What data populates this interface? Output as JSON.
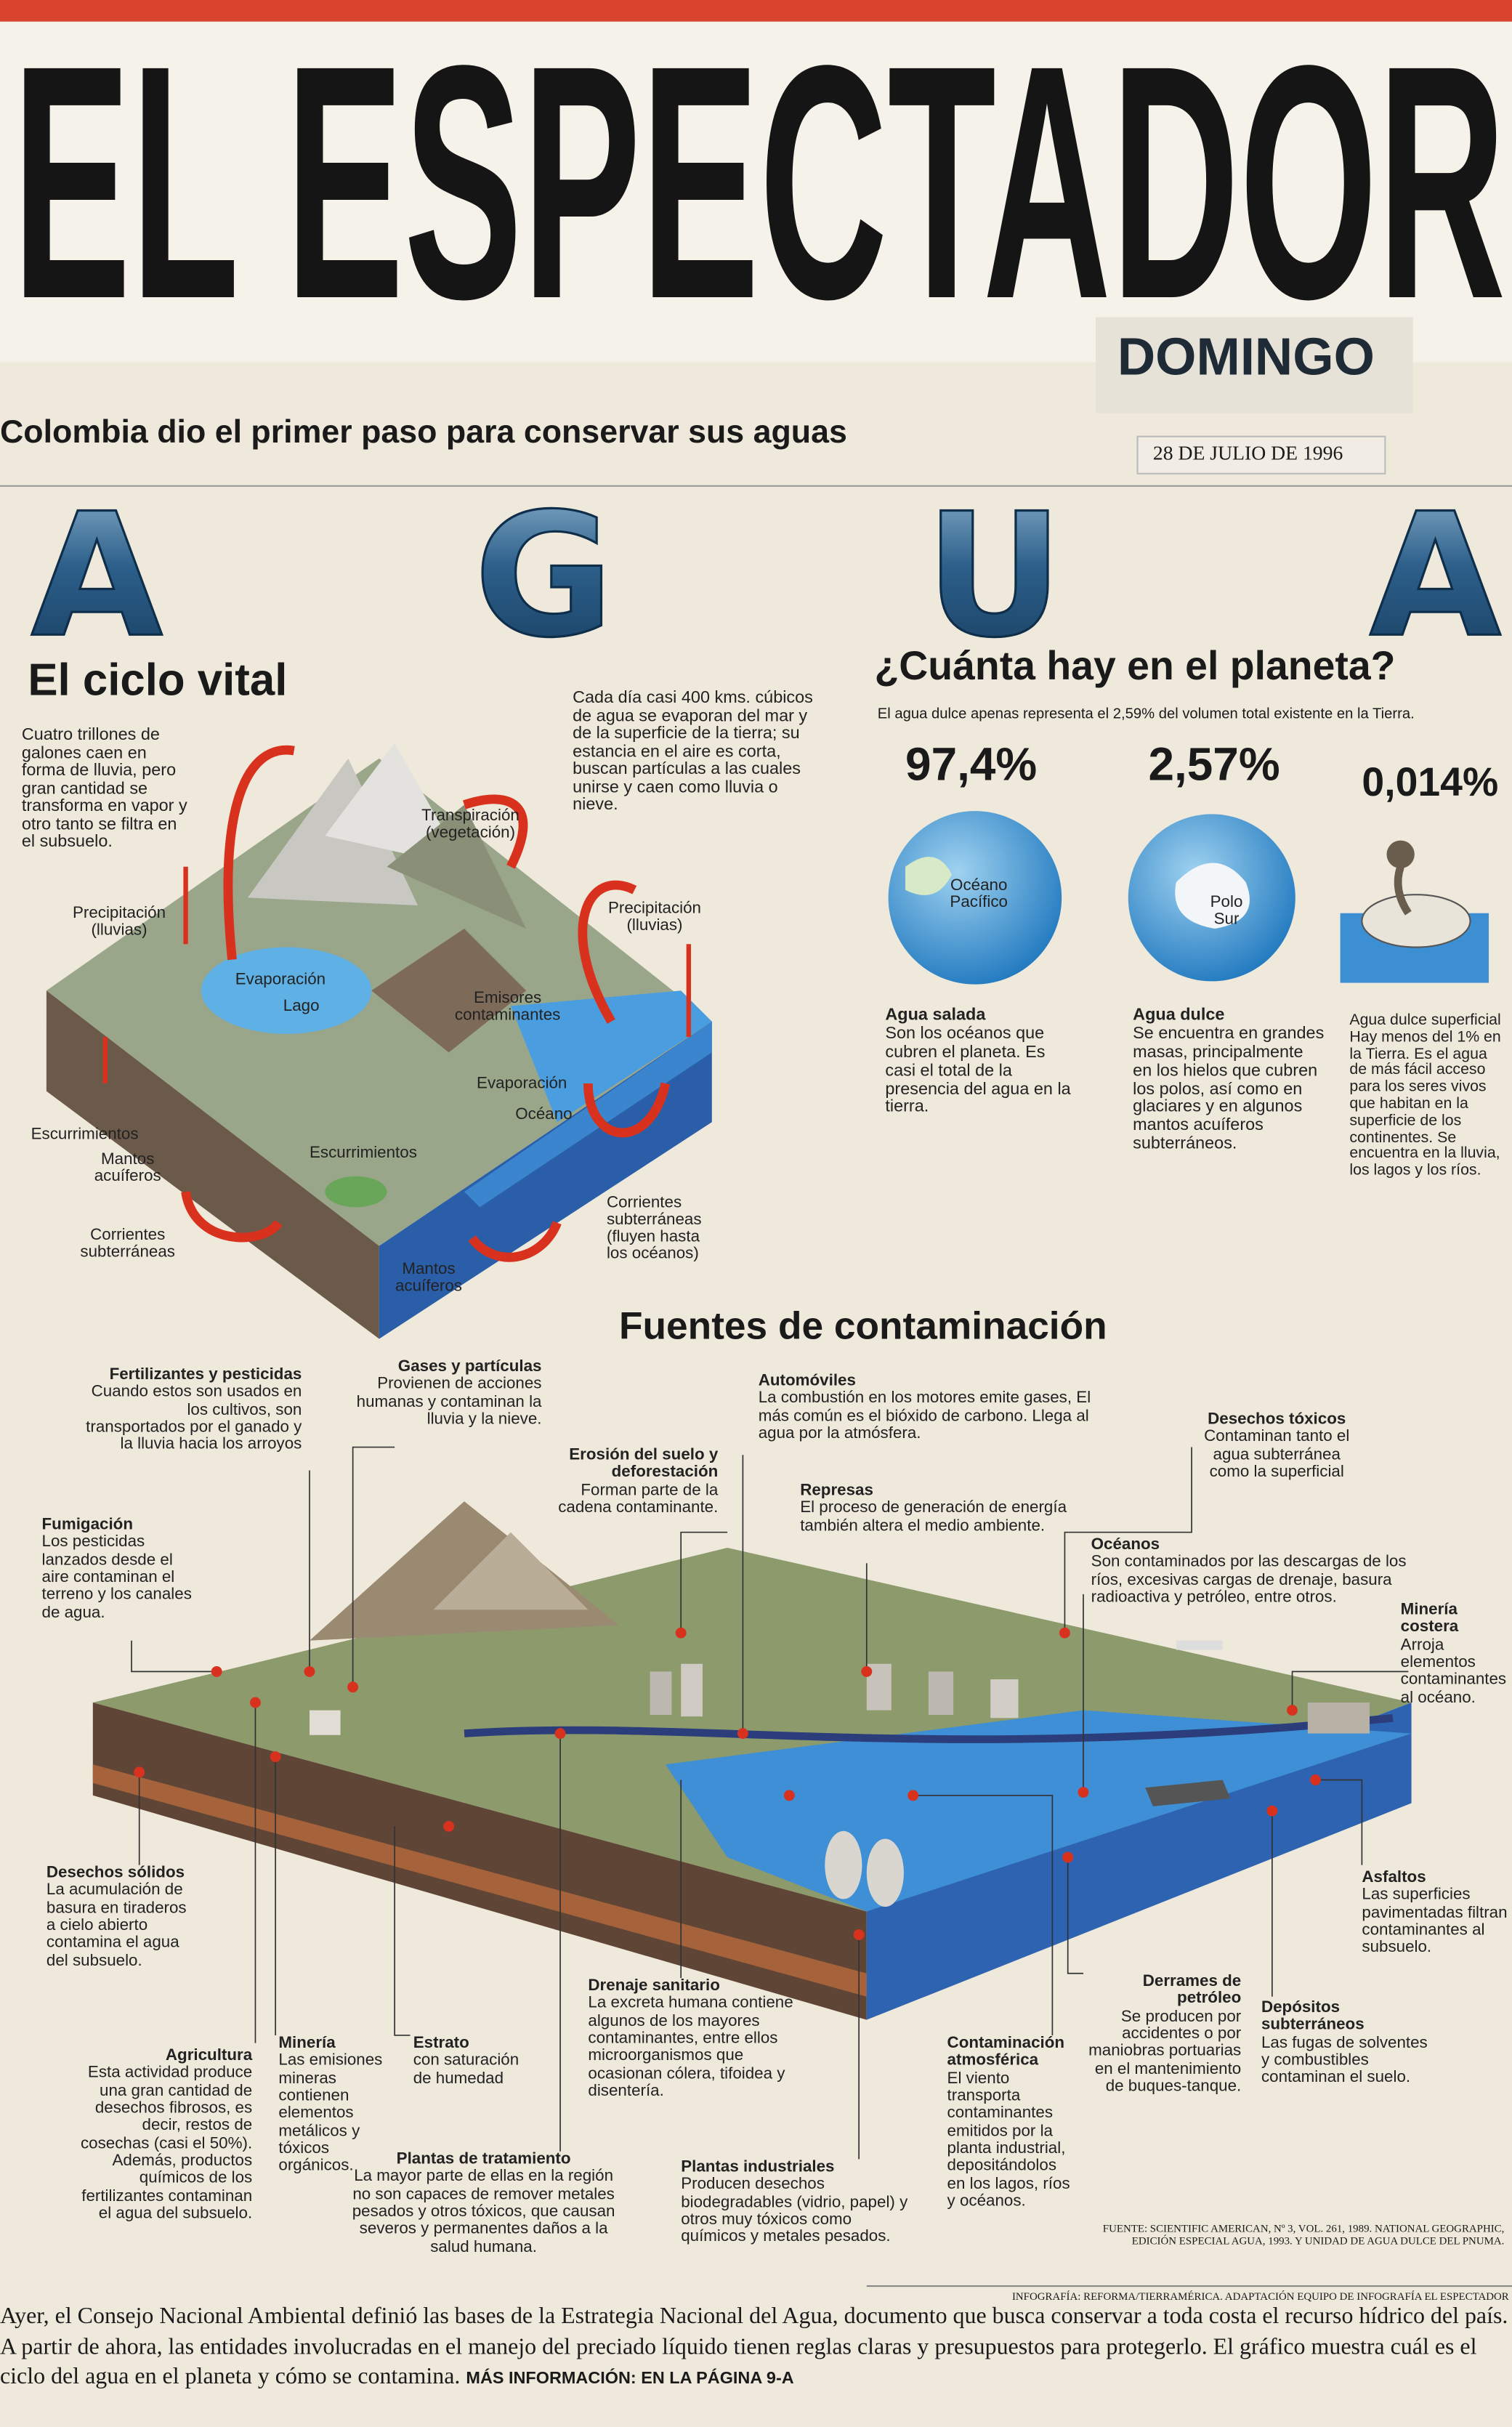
{
  "header": {
    "masthead": "EL ESPECTADOR",
    "edition": "DOMINGO",
    "headline": "Colombia dio el primer paso para conservar sus aguas",
    "date": "28 DE JULIO DE 1996"
  },
  "banner": {
    "title": "AGUA"
  },
  "cycle": {
    "title": "El ciclo vital",
    "intro": "Cuatro trillones de galones caen en forma de lluvia, pero gran cantidad se transforma en vapor y otro tanto se filtra en el subsuelo.",
    "note": "Cada día casi 400 kms. cúbicos de agua se evaporan del mar y de la superficie de la tierra; su estancia en el aire es corta, buscan partículas a las cuales unirse y caen como lluvia o nieve.",
    "labels": [
      "Transpiración (vegetación)",
      "Precipitación (lluvias)",
      "Evaporación",
      "Lago",
      "Emisores contaminantes",
      "Precipitación (lluvias)",
      "Evaporación",
      "Océano",
      "Escurrimientos",
      "Mantos acuíferos",
      "Escurrimientos",
      "Corrientes subterráneas",
      "Mantos acuíferos",
      "Corrientes subterráneas (fluyen hasta los océanos)"
    ]
  },
  "planet": {
    "title": "¿Cuánta hay en el planeta?",
    "subtitle": "El agua dulce apenas representa el 2,59% del volumen total existente en la Tierra.",
    "items": [
      {
        "percent": "97,4%",
        "globe_label": "Océano Pacífico",
        "heading": "Agua salada",
        "text": "Son los océanos que cubren el planeta. Es casi el total de la presencia del agua en la tierra."
      },
      {
        "percent": "2,57%",
        "globe_label": "Polo Sur",
        "heading": "Agua dulce",
        "text": "Se encuentra en grandes masas, principalmente en los hielos que cubren los polos, así como en glaciares y en algunos mantos acuíferos subterráneos."
      },
      {
        "percent": "0,014%",
        "heading": "Agua dulce superficial",
        "text": "Hay menos del 1% en la Tierra. Es el agua de más fácil acceso para los seres vivos que habitan en la superficie de los continentes. Se encuentra en la lluvia, los lagos y los ríos."
      }
    ]
  },
  "contamination": {
    "title": "Fuentes de contaminación",
    "sources": [
      {
        "heading": "Fertilizantes y pesticidas",
        "text": "Cuando estos son usados en los cultivos, son transportados por el ganado y la lluvia hacia los arroyos"
      },
      {
        "heading": "Gases y partículas",
        "text": "Provienen de acciones humanas y contaminan la lluvia y la nieve."
      },
      {
        "heading": "Automóviles",
        "text": "La combustión en los motores emite gases, El más común es el bióxido de carbono. Llega al agua por la atmósfera."
      },
      {
        "heading": "Erosión del suelo y deforestación",
        "text": "Forman parte de la cadena contaminante."
      },
      {
        "heading": "Desechos tóxicos",
        "text": "Contaminan tanto el agua subterránea como la superficial"
      },
      {
        "heading": "Fumigación",
        "text": "Los pesticidas lanzados desde el aire contaminan el terreno y los canales de agua."
      },
      {
        "heading": "Represas",
        "text": "El proceso de generación de energía también altera el medio ambiente."
      },
      {
        "heading": "Océanos",
        "text": "Son contaminados por las descargas de los ríos, excesivas cargas de drenaje, basura radioactiva y petróleo, entre otros."
      },
      {
        "heading": "Minería costera",
        "text": "Arroja elementos contaminantes al océano."
      },
      {
        "heading": "Desechos sólidos",
        "text": "La acumulación de basura en tiraderos a cielo abierto contamina el agua del subsuelo."
      },
      {
        "heading": "Asfaltos",
        "text": "Las superficies pavimentadas filtran contaminantes al subsuelo."
      },
      {
        "heading": "Agricultura",
        "text": "Esta actividad produce una gran cantidad de desechos fibrosos, es decir, restos de cosechas (casi el 50%). Además, productos químicos de los fertilizantes contaminan el agua del subsuelo."
      },
      {
        "heading": "Minería",
        "text": "Las emisiones mineras contienen elementos metálicos y tóxicos orgánicos."
      },
      {
        "heading": "Estrato",
        "text": "con saturación de humedad"
      },
      {
        "heading": "Drenaje sanitario",
        "text": "La excreta humana contiene algunos de los mayores contaminantes, entre ellos microorganismos que ocasionan cólera, tifoidea y disentería."
      },
      {
        "heading": "Contaminación atmosférica",
        "text": "El viento transporta contaminantes emitidos por la planta industrial, depositándolos en los lagos, ríos y océanos."
      },
      {
        "heading": "Derrames de petróleo",
        "text": "Se producen por accidentes o por maniobras portuarias en el mantenimiento de buques-tanque."
      },
      {
        "heading": "Depósitos subterráneos",
        "text": "Las fugas de solventes y combustibles contaminan el suelo."
      },
      {
        "heading": "Plantas de tratamiento",
        "text": "La mayor parte de ellas en la región no son capaces de remover metales pesados y otros tóxicos, que causan severos y permanentes daños a la salud humana."
      },
      {
        "heading": "Plantas industriales",
        "text": "Producen desechos biodegradables (vidrio, papel) y otros muy tóxicos como químicos y metales pesados."
      }
    ]
  },
  "credits": {
    "source": "FUENTE: SCIENTIFIC AMERICAN, Nº 3, VOL. 261, 1989. NATIONAL GEOGRAPHIC, EDICIÓN ESPECIAL AGUA, 1993. Y UNIDAD DE AGUA DULCE DEL PNUMA.",
    "infographic": "INFOGRAFÍA: REFORMA/TIERRAMÉRICA. ADAPTACIÓN EQUIPO DE INFOGRAFÍA EL ESPECTADOR"
  },
  "footer": {
    "text": "Ayer, el Consejo Nacional Ambiental definió las bases de la Estrategia Nacional del Agua, documento que busca conservar a toda costa el recurso hídrico del país. A partir de ahora, las entidades involucradas en el manejo del preciado líquido tienen reglas claras y presupuestos para protegerlo. El gráfico muestra cuál es el ciclo del agua en el planeta y cómo se contamina.",
    "more_info": "MÁS INFORMACIÓN: EN LA PÁGINA 9-A"
  }
}
